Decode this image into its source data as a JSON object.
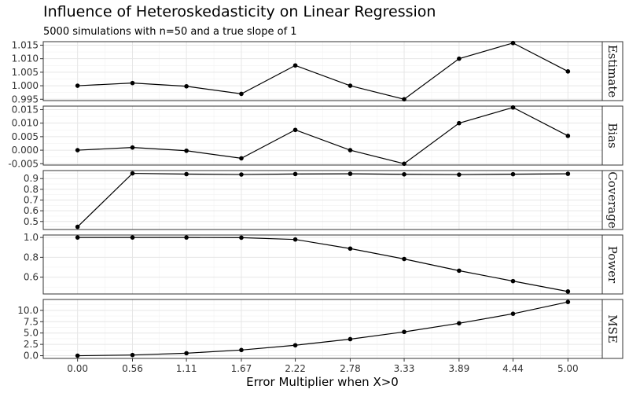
{
  "chart_data": {
    "type": "line",
    "title": "Influence of Heteroskedasticity on Linear Regression",
    "subtitle": "5000 simulations with n=50 and a true slope of 1",
    "xlabel": "Error Multiplier when X>0",
    "ylabel": "",
    "x": [
      0.0,
      0.56,
      1.11,
      1.67,
      2.22,
      2.78,
      3.33,
      3.89,
      4.44,
      5.0
    ],
    "x_tick_labels": [
      "0.00",
      "0.56",
      "1.11",
      "1.67",
      "2.22",
      "2.78",
      "3.33",
      "3.89",
      "4.44",
      "5.00"
    ],
    "xlim": [
      -0.35,
      5.35
    ],
    "grid": true,
    "legend": "none",
    "panels": [
      {
        "name": "Estimate",
        "values": [
          1.0,
          1.001,
          0.9998,
          0.997,
          1.0075,
          1.0,
          0.995,
          1.01,
          1.0158,
          1.0053
        ],
        "ylim": [
          0.9945,
          1.0163
        ],
        "y_ticks": [
          0.995,
          1.0,
          1.005,
          1.01,
          1.015
        ],
        "y_tick_labels": [
          "0.995",
          "1.000",
          "1.005",
          "1.010",
          "1.015"
        ]
      },
      {
        "name": "Bias",
        "values": [
          0.0,
          0.001,
          -0.0002,
          -0.003,
          0.0075,
          0.0,
          -0.005,
          0.01,
          0.0158,
          0.0053
        ],
        "ylim": [
          -0.0055,
          0.0163
        ],
        "y_ticks": [
          -0.005,
          0.0,
          0.005,
          0.01,
          0.015
        ],
        "y_tick_labels": [
          "-0.005",
          "0.000",
          "0.005",
          "0.010",
          "0.015"
        ]
      },
      {
        "name": "Coverage",
        "values": [
          0.45,
          0.949,
          0.942,
          0.938,
          0.943,
          0.945,
          0.94,
          0.937,
          0.941,
          0.945
        ],
        "ylim": [
          0.425,
          0.975
        ],
        "y_ticks": [
          0.5,
          0.6,
          0.7,
          0.8,
          0.9
        ],
        "y_tick_labels": [
          "0.5",
          "0.6",
          "0.7",
          "0.8",
          "0.9"
        ]
      },
      {
        "name": "Power",
        "values": [
          1.0,
          1.0,
          1.0,
          0.998,
          0.98,
          0.888,
          0.783,
          0.665,
          0.56,
          0.455
        ],
        "ylim": [
          0.43,
          1.025
        ],
        "y_ticks": [
          0.6,
          0.8,
          1.0
        ],
        "y_tick_labels": [
          "0.6",
          "0.8",
          "1.0"
        ]
      },
      {
        "name": "MSE",
        "values": [
          0.0,
          0.15,
          0.55,
          1.25,
          2.3,
          3.65,
          5.25,
          7.15,
          9.25,
          11.85
        ],
        "ylim": [
          -0.6,
          12.4
        ],
        "y_ticks": [
          0.0,
          2.5,
          5.0,
          7.5,
          10.0
        ],
        "y_tick_labels": [
          "0.0",
          "2.5",
          "5.0",
          "7.5",
          "10.0"
        ]
      }
    ]
  }
}
